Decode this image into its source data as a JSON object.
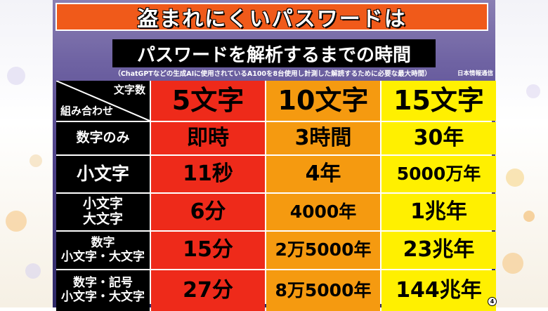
{
  "headline": "盗まれにくいパスワードは",
  "subtitle": "パスワードを解析するまでの時間",
  "note": "（ChatGPTなどの生成AIに使用されているA100を8台使用し計測した解読するために必要な最大時間）",
  "credit": "日本情報通信",
  "table": {
    "corner_top": "文字数",
    "corner_bottom": "組み合わせ",
    "columns": [
      "5文字",
      "10文字",
      "15文字"
    ],
    "rows": [
      {
        "label": [
          "数字のみ"
        ],
        "values": [
          "即時",
          "3時間",
          "30年"
        ]
      },
      {
        "label": [
          "小文字"
        ],
        "values": [
          "11秒",
          "4年",
          "5000万年"
        ]
      },
      {
        "label": [
          "小文字",
          "大文字"
        ],
        "values": [
          "6分",
          "4000年",
          "1兆年"
        ]
      },
      {
        "label": [
          "数字",
          "小文字・大文字"
        ],
        "values": [
          "15分",
          "2万5000年",
          "23兆年"
        ]
      },
      {
        "label": [
          "数字・記号",
          "小文字・大文字"
        ],
        "values": [
          "27分",
          "8万5000年",
          "144兆年"
        ]
      }
    ]
  },
  "page_marker": "4",
  "colors": {
    "headline_bg": "#f05a1a",
    "col1": "#ee2a1a",
    "col2": "#f59a10",
    "col3": "#fff000"
  }
}
